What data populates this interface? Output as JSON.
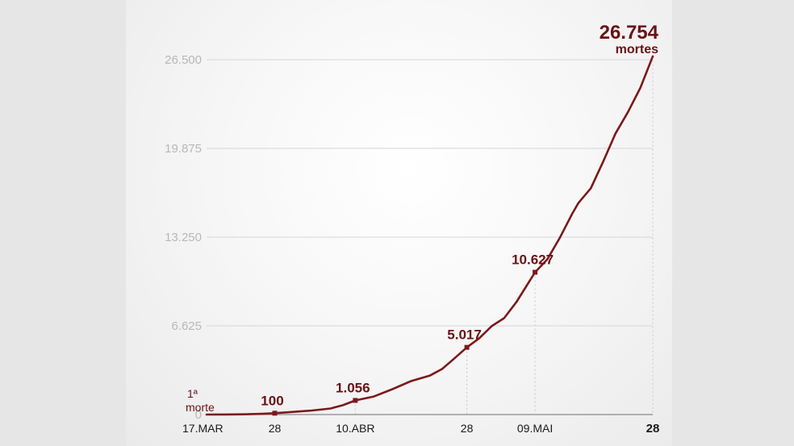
{
  "chart_data": {
    "type": "line",
    "title": "",
    "xlabel": "",
    "ylabel": "",
    "ylim": [
      0,
      26500
    ],
    "yticks": [
      "0",
      "6.625",
      "13.250",
      "19.875",
      "26.500"
    ],
    "ytick_values": [
      0,
      6625,
      13250,
      19875,
      26500
    ],
    "xtick_labels": [
      {
        "label": "17.MAR",
        "day": 0,
        "bold": false
      },
      {
        "label": "28",
        "day": 11,
        "bold": false
      },
      {
        "label": "10.ABR",
        "day": 24,
        "bold": false
      },
      {
        "label": "28",
        "day": 42,
        "bold": false
      },
      {
        "label": "09.MAI",
        "day": 53,
        "bold": false
      },
      {
        "label": "28",
        "day": 72,
        "bold": true
      }
    ],
    "series": [
      {
        "name": "",
        "color": "#7a1a1c",
        "points": [
          [
            0,
            1
          ],
          [
            3,
            5
          ],
          [
            6,
            20
          ],
          [
            9,
            60
          ],
          [
            11,
            100
          ],
          [
            14,
            200
          ],
          [
            17,
            300
          ],
          [
            20,
            450
          ],
          [
            22,
            700
          ],
          [
            24,
            1056
          ],
          [
            27,
            1350
          ],
          [
            30,
            1900
          ],
          [
            33,
            2500
          ],
          [
            36,
            2900
          ],
          [
            38,
            3400
          ],
          [
            40,
            4200
          ],
          [
            42,
            5017
          ],
          [
            44,
            5700
          ],
          [
            46,
            6600
          ],
          [
            48,
            7200
          ],
          [
            50,
            8400
          ],
          [
            53,
            10627
          ],
          [
            55,
            11600
          ],
          [
            57,
            13200
          ],
          [
            59,
            15000
          ],
          [
            60,
            15800
          ],
          [
            62,
            16900
          ],
          [
            64,
            18900
          ],
          [
            66,
            21000
          ],
          [
            68,
            22600
          ],
          [
            70,
            24400
          ],
          [
            72,
            26754
          ]
        ]
      }
    ],
    "marked_points": [
      {
        "day": 11,
        "value": 100,
        "label": "100"
      },
      {
        "day": 24,
        "value": 1056,
        "label": "1.056"
      },
      {
        "day": 42,
        "value": 5017,
        "label": "5.017"
      },
      {
        "day": 53,
        "value": 10627,
        "label": "10.627"
      },
      {
        "day": 72,
        "value": 26754,
        "label": "26.754",
        "sublabel": "mortes"
      }
    ],
    "first_death_label": [
      "1ª",
      "morte"
    ],
    "grid": "horizontal",
    "colors": {
      "line": "#7a1a1c",
      "annotation": "#6b1216",
      "grid": "#d6d6d6",
      "ytick": "#b8b8b8",
      "xtick": "#1a1a1a"
    }
  }
}
